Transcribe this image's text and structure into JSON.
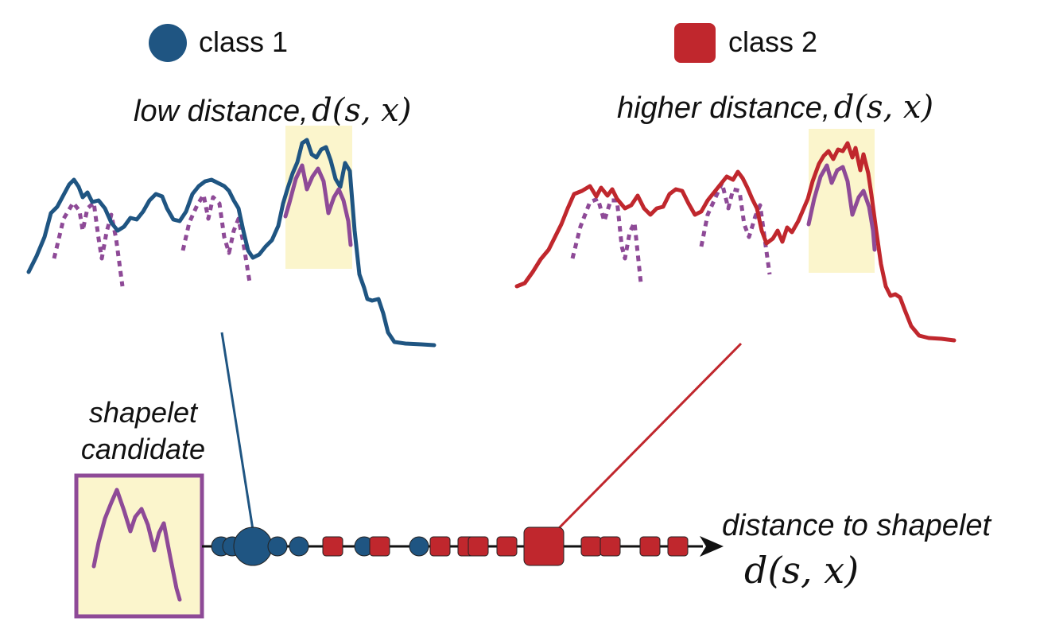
{
  "colors": {
    "class1": "#1f5582",
    "class2": "#c0272d",
    "shapelet": "#8e4a97",
    "highlight": "#fbf5cc",
    "axis": "#111111"
  },
  "legend": {
    "class1_label": "class 1",
    "class2_label": "class 2"
  },
  "panel_left": {
    "caption_text": "low distance,",
    "caption_math": "d(s, x)"
  },
  "panel_right": {
    "caption_text": "higher distance,",
    "caption_math": "d(s, x)"
  },
  "candidate": {
    "label_line1": "shapelet",
    "label_line2": "candidate"
  },
  "axis": {
    "label": "distance to shapelet",
    "math": "d(s, x)"
  }
}
